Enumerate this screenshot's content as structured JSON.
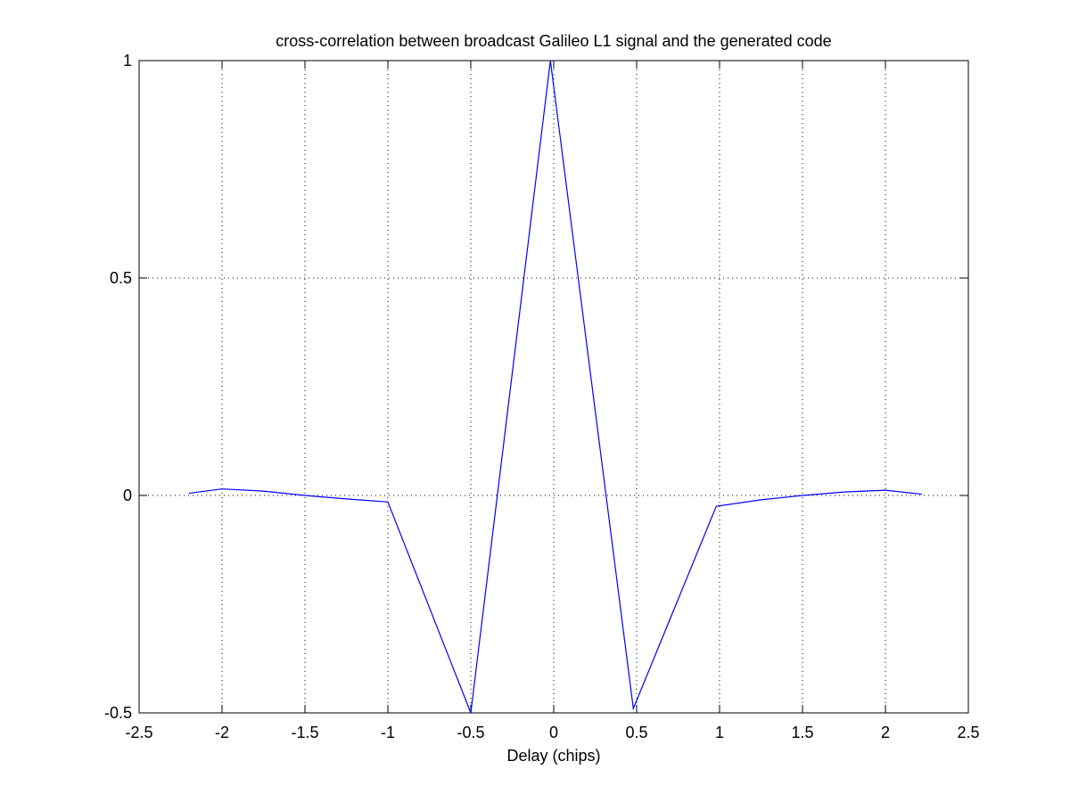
{
  "chart_data": {
    "type": "line",
    "title": "cross-correlation between broadcast Galileo L1 signal and the generated code",
    "x_label": "Delay (chips)",
    "x": [
      -2.2,
      -2.0,
      -1.75,
      -1.5,
      -1.25,
      -1.0,
      -0.5,
      -0.02,
      0.48,
      0.98,
      1.25,
      1.5,
      1.75,
      2.0,
      2.22
    ],
    "series": [
      {
        "color": "#0000ff",
        "values": [
          0.005,
          0.015,
          0.01,
          0.0,
          -0.008,
          -0.015,
          -0.5,
          1.0,
          -0.49,
          -0.025,
          -0.01,
          0.0,
          0.008,
          0.012,
          0.003
        ]
      }
    ],
    "xlim": [
      -2.5,
      2.5
    ],
    "xticks": [
      -2.5,
      -2,
      -1.5,
      -1,
      -0.5,
      0,
      0.5,
      1,
      1.5,
      2,
      2.5
    ],
    "ylim": [
      -0.5,
      1
    ],
    "yticks": [
      -0.5,
      0,
      0.5,
      1
    ],
    "grid": true
  }
}
